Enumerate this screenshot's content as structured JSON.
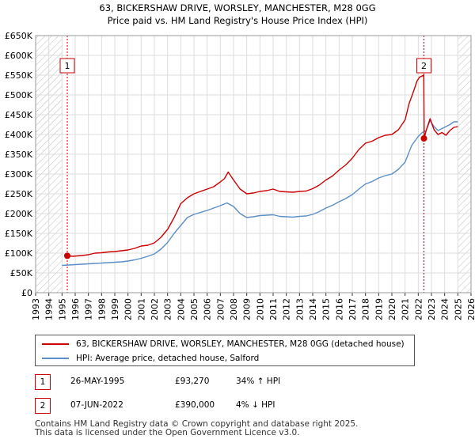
{
  "chart_data": {
    "type": "line",
    "title": "63, BICKERSHAW DRIVE, WORSLEY, MANCHESTER, M28 0GG",
    "subtitle": "Price paid vs. HM Land Registry's House Price Index (HPI)",
    "xlabel": "",
    "ylabel": "",
    "xlim": [
      1993,
      2026
    ],
    "ylim": [
      0,
      650000
    ],
    "y_ticks": [
      {
        "value": 0,
        "label": "£0"
      },
      {
        "value": 50000,
        "label": "£50K"
      },
      {
        "value": 100000,
        "label": "£100K"
      },
      {
        "value": 150000,
        "label": "£150K"
      },
      {
        "value": 200000,
        "label": "£200K"
      },
      {
        "value": 250000,
        "label": "£250K"
      },
      {
        "value": 300000,
        "label": "£300K"
      },
      {
        "value": 350000,
        "label": "£350K"
      },
      {
        "value": 400000,
        "label": "£400K"
      },
      {
        "value": 450000,
        "label": "£450K"
      },
      {
        "value": 500000,
        "label": "£500K"
      },
      {
        "value": 550000,
        "label": "£550K"
      },
      {
        "value": 600000,
        "label": "£600K"
      },
      {
        "value": 650000,
        "label": "£650K"
      }
    ],
    "x_ticks": [
      "1993",
      "1994",
      "1995",
      "1996",
      "1997",
      "1998",
      "1999",
      "2000",
      "2001",
      "2002",
      "2003",
      "2004",
      "2005",
      "2006",
      "2007",
      "2008",
      "2009",
      "2010",
      "2011",
      "2012",
      "2013",
      "2014",
      "2015",
      "2016",
      "2017",
      "2018",
      "2019",
      "2020",
      "2021",
      "2022",
      "2023",
      "2024",
      "2025",
      "2026"
    ],
    "hatched_ranges": [
      [
        1993,
        1995.0
      ],
      [
        2025.0,
        2026
      ]
    ],
    "series": [
      {
        "name": "63, BICKERSHAW DRIVE, WORSLEY, MANCHESTER, M28 0GG (detached house)",
        "color": "#cc0000",
        "x": [
          1995.4,
          1995.8,
          1996.5,
          1997.0,
          1997.5,
          1998.0,
          1998.5,
          1999.0,
          1999.5,
          2000.0,
          2000.5,
          2001.0,
          2001.5,
          2002.0,
          2002.5,
          2003.0,
          2003.5,
          2004.0,
          2004.5,
          2005.0,
          2005.5,
          2006.0,
          2006.5,
          2007.0,
          2007.3,
          2007.6,
          2008.0,
          2008.5,
          2009.0,
          2009.5,
          2010.0,
          2010.5,
          2011.0,
          2011.5,
          2012.0,
          2012.5,
          2013.0,
          2013.5,
          2014.0,
          2014.5,
          2015.0,
          2015.5,
          2016.0,
          2016.5,
          2017.0,
          2017.5,
          2018.0,
          2018.5,
          2019.0,
          2019.5,
          2020.0,
          2020.5,
          2021.0,
          2021.3,
          2021.6,
          2021.9,
          2022.1,
          2022.3,
          2022.42,
          2022.45,
          2022.6,
          2022.9,
          2023.2,
          2023.5,
          2023.8,
          2024.1,
          2024.4,
          2024.7,
          2025.0
        ],
        "values": [
          93270,
          92000,
          94000,
          96000,
          100000,
          101000,
          103000,
          104000,
          106000,
          108000,
          112000,
          118000,
          120000,
          126000,
          140000,
          160000,
          190000,
          225000,
          240000,
          250000,
          256000,
          262000,
          268000,
          280000,
          288000,
          305000,
          285000,
          262000,
          250000,
          252000,
          256000,
          258000,
          262000,
          256000,
          255000,
          254000,
          256000,
          257000,
          263000,
          272000,
          285000,
          295000,
          310000,
          323000,
          340000,
          362000,
          378000,
          383000,
          392000,
          398000,
          400000,
          412000,
          437000,
          478000,
          505000,
          535000,
          545000,
          548000,
          550000,
          390000,
          410000,
          440000,
          412000,
          400000,
          405000,
          398000,
          410000,
          418000,
          420000
        ]
      },
      {
        "name": "HPI: Average price, detached house, Salford",
        "color": "#5b8ec6",
        "x": [
          1995.0,
          1995.5,
          1996.0,
          1996.5,
          1997.0,
          1997.5,
          1998.0,
          1998.5,
          1999.0,
          1999.5,
          2000.0,
          2000.5,
          2001.0,
          2001.5,
          2002.0,
          2002.5,
          2003.0,
          2003.5,
          2004.0,
          2004.5,
          2005.0,
          2005.5,
          2006.0,
          2006.5,
          2007.0,
          2007.5,
          2008.0,
          2008.5,
          2009.0,
          2009.5,
          2010.0,
          2010.5,
          2011.0,
          2011.5,
          2012.0,
          2012.5,
          2013.0,
          2013.5,
          2014.0,
          2014.5,
          2015.0,
          2015.5,
          2016.0,
          2016.5,
          2017.0,
          2017.5,
          2018.0,
          2018.5,
          2019.0,
          2019.5,
          2020.0,
          2020.5,
          2021.0,
          2021.5,
          2022.0,
          2022.3,
          2022.6,
          2022.9,
          2023.2,
          2023.5,
          2023.8,
          2024.1,
          2024.4,
          2024.7,
          2025.0
        ],
        "values": [
          69000,
          70000,
          71000,
          72000,
          73000,
          74000,
          75000,
          76000,
          77000,
          78000,
          80000,
          83000,
          87000,
          92000,
          98000,
          110000,
          127000,
          150000,
          170000,
          190000,
          198000,
          203000,
          208000,
          214000,
          220000,
          227000,
          218000,
          200000,
          190000,
          192000,
          195000,
          196000,
          197000,
          193000,
          192000,
          191000,
          193000,
          194000,
          198000,
          205000,
          214000,
          221000,
          230000,
          238000,
          248000,
          262000,
          275000,
          281000,
          290000,
          296000,
          300000,
          312000,
          330000,
          372000,
          395000,
          405000,
          410000,
          435000,
          420000,
          410000,
          415000,
          420000,
          425000,
          432000,
          432000
        ]
      }
    ],
    "sales": [
      {
        "id": "1",
        "date": "26-MAY-1995",
        "x": 1995.4,
        "price": 93270,
        "price_label": "£93,270",
        "hpi_label": "34% ↑ HPI"
      },
      {
        "id": "2",
        "date": "07-JUN-2022",
        "x": 2022.43,
        "price": 390000,
        "price_label": "£390,000",
        "hpi_label": "4% ↓ HPI"
      }
    ]
  },
  "legend": {
    "property_label": "63, BICKERSHAW DRIVE, WORSLEY, MANCHESTER, M28 0GG (detached house)",
    "hpi_label": "HPI: Average price, detached house, Salford",
    "property_color": "#cc0000",
    "hpi_color": "#5b8ec6"
  },
  "footer": {
    "line1": "Contains HM Land Registry data © Crown copyright and database right 2025.",
    "line2": "This data is licensed under the Open Government Licence v3.0."
  }
}
